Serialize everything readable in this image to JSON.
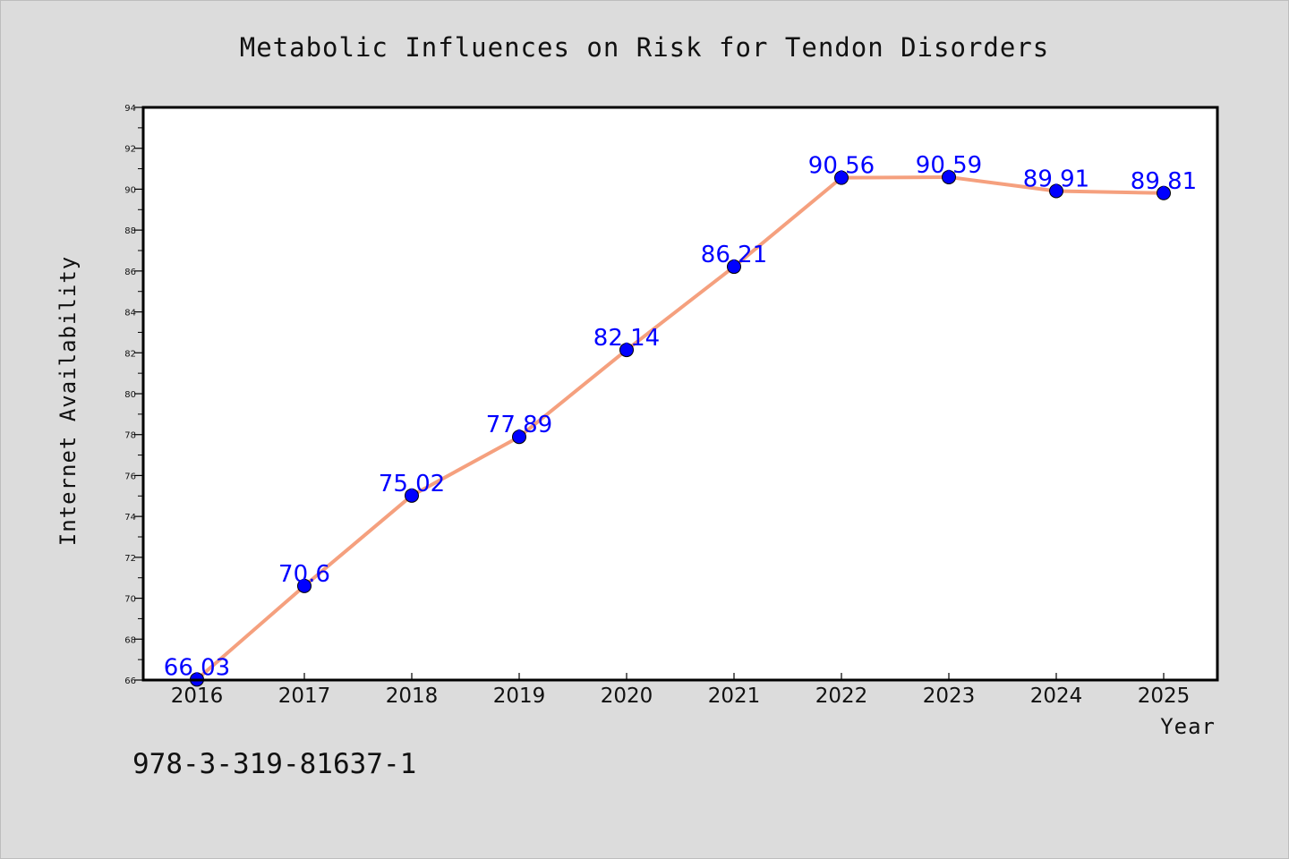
{
  "chart_data": {
    "type": "line",
    "title": "Metabolic Influences on Risk for Tendon Disorders",
    "xlabel": "Year",
    "ylabel": "Internet Availability",
    "x": [
      "2016",
      "2017",
      "2018",
      "2019",
      "2020",
      "2021",
      "2022",
      "2023",
      "2024",
      "2025"
    ],
    "series": [
      {
        "values": [
          66.03,
          70.6,
          75.02,
          77.89,
          82.14,
          86.21,
          90.56,
          90.59,
          89.91,
          89.81
        ],
        "labels": [
          "66.03",
          "70.6",
          "75.02",
          "77.89",
          "82.14",
          "86.21",
          "90.56",
          "90.59",
          "89.91",
          "89.81"
        ],
        "line_color": "#f5a07e",
        "marker_color": "#0000ff",
        "label_color": "#0000ff"
      }
    ],
    "ylim": [
      66,
      94
    ],
    "yticks": [
      66,
      68,
      70,
      72,
      74,
      76,
      78,
      80,
      82,
      84,
      86,
      88,
      90,
      92,
      94
    ],
    "grid": false,
    "legend": "none"
  },
  "footer": {
    "isbn": "978-3-319-81637-1"
  }
}
